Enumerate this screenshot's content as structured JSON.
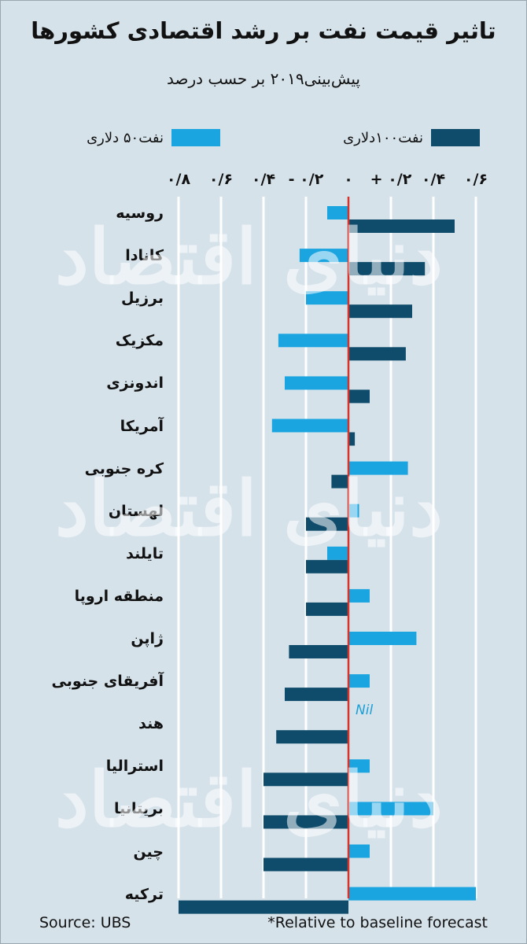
{
  "title": "تاثیر قیمت نفت بر رشد اقتصادی کشورها",
  "subtitle": "پیش‌بینی۲۰۱۹ بر حسب درصد",
  "legend": {
    "oil50": "نفت۵۰ دلاری",
    "oil100": "نفت۱۰۰دلاری"
  },
  "colors": {
    "oil50": "#1ba5e0",
    "oil100": "#0f4c6b",
    "zero_line": "#d9322b",
    "grid": "#ffffff",
    "background": "#d6e2ea"
  },
  "tick_labels": [
    "۰/۸",
    "۰/۶",
    "۰/۴",
    "- ۰/۲",
    "۰",
    "+ ۰/۲",
    "۰/۴",
    "۰/۶"
  ],
  "nil_label": "Nil",
  "footer": {
    "source": "Source: UBS",
    "note": "*Relative to baseline forecast"
  },
  "watermark": "دنیای اقتصاد",
  "chart_data": {
    "type": "bar",
    "orientation": "horizontal",
    "title": "تاثیر قیمت نفت بر رشد اقتصادی کشورها",
    "subtitle": "پیش‌بینی۲۰۱۹ بر حسب درصد",
    "xlim": [
      -0.8,
      0.6
    ],
    "xticks": [
      -0.8,
      -0.6,
      -0.4,
      -0.2,
      0,
      0.2,
      0.4,
      0.6
    ],
    "grid": true,
    "legend_position": "top",
    "categories": [
      "روسیه",
      "کانادا",
      "برزیل",
      "مکزیک",
      "اندونزی",
      "آمریکا",
      "کره جنوبی",
      "لهستان",
      "تایلند",
      "منطقه اروپا",
      "ژاپن",
      "آفریقای جنوبی",
      "هند",
      "استرالیا",
      "بریتانیا",
      "چین",
      "ترکیه"
    ],
    "series": [
      {
        "name": "نفت۵۰ دلاری",
        "values": [
          -0.1,
          -0.23,
          -0.2,
          -0.33,
          -0.3,
          -0.36,
          0.28,
          0.05,
          -0.1,
          0.1,
          0.32,
          0.1,
          0,
          0.1,
          0.4,
          0.1,
          0.6
        ]
      },
      {
        "name": "نفت۱۰۰دلاری",
        "values": [
          0.5,
          0.36,
          0.3,
          0.27,
          0.1,
          0.03,
          -0.08,
          -0.2,
          -0.2,
          -0.2,
          -0.28,
          -0.3,
          -0.34,
          -0.4,
          -0.4,
          -0.4,
          -0.8
        ]
      }
    ]
  }
}
